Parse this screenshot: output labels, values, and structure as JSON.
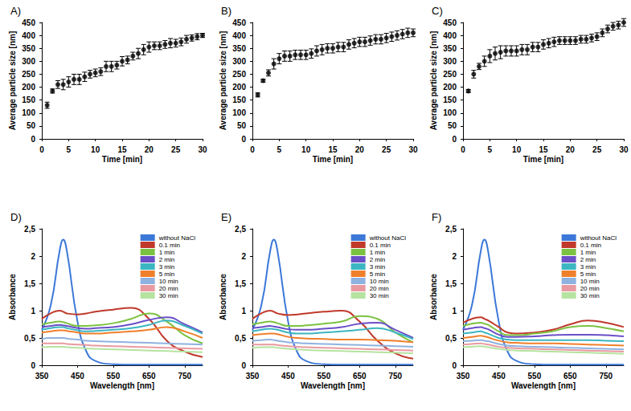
{
  "chart_data": [
    {
      "type": "scatter",
      "title": "A)",
      "x_label": "Time [min]",
      "y_label": "Average particle size [nm]",
      "x": [
        1,
        2,
        3,
        4,
        5,
        6,
        7,
        8,
        9,
        10,
        11,
        12,
        13,
        14,
        15,
        16,
        17,
        18,
        19,
        20,
        21,
        22,
        23,
        24,
        25,
        26,
        27,
        28,
        29,
        30
      ],
      "values": [
        130,
        185,
        210,
        210,
        220,
        230,
        230,
        240,
        250,
        255,
        260,
        280,
        280,
        285,
        300,
        305,
        320,
        330,
        345,
        355,
        360,
        360,
        365,
        370,
        370,
        375,
        385,
        390,
        395,
        400
      ],
      "errors": [
        12,
        8,
        15,
        20,
        20,
        20,
        20,
        18,
        15,
        15,
        15,
        20,
        20,
        15,
        18,
        15,
        15,
        20,
        20,
        20,
        15,
        15,
        15,
        18,
        15,
        15,
        15,
        12,
        12,
        8
      ],
      "color": "#000000",
      "marker": "circle",
      "xlim": [
        0,
        30
      ],
      "xticks": [
        0,
        5,
        10,
        15,
        20,
        25,
        30
      ],
      "ylim": [
        0,
        450
      ],
      "yticks": [
        0,
        50,
        100,
        150,
        200,
        250,
        300,
        350,
        400,
        450
      ],
      "grid": false
    },
    {
      "type": "scatter",
      "title": "B)",
      "x_label": "Time [min]",
      "y_label": "Average particle size [nm]",
      "x": [
        1,
        2,
        3,
        4,
        5,
        6,
        7,
        8,
        9,
        10,
        11,
        12,
        13,
        14,
        15,
        16,
        17,
        18,
        19,
        20,
        21,
        22,
        23,
        24,
        25,
        26,
        27,
        28,
        29,
        30
      ],
      "values": [
        170,
        225,
        255,
        290,
        310,
        320,
        320,
        325,
        325,
        325,
        330,
        340,
        345,
        350,
        350,
        355,
        355,
        365,
        370,
        375,
        375,
        380,
        385,
        385,
        390,
        395,
        400,
        405,
        410,
        410
      ],
      "errors": [
        8,
        6,
        12,
        20,
        20,
        20,
        20,
        18,
        18,
        18,
        18,
        20,
        20,
        18,
        18,
        18,
        18,
        18,
        18,
        18,
        18,
        18,
        18,
        18,
        18,
        18,
        18,
        18,
        18,
        15
      ],
      "color": "#000000",
      "marker": "circle",
      "xlim": [
        0,
        30
      ],
      "xticks": [
        0,
        5,
        10,
        15,
        20,
        25,
        30
      ],
      "ylim": [
        0,
        450
      ],
      "yticks": [
        0,
        50,
        100,
        150,
        200,
        250,
        300,
        350,
        400,
        450
      ],
      "grid": false
    },
    {
      "type": "scatter",
      "title": "C)",
      "x_label": "Time [min]",
      "y_label": "Average particle size [nm]",
      "x": [
        1,
        2,
        3,
        4,
        5,
        6,
        7,
        8,
        9,
        10,
        11,
        12,
        13,
        14,
        15,
        16,
        17,
        18,
        19,
        20,
        21,
        22,
        23,
        24,
        25,
        26,
        27,
        28,
        29,
        30
      ],
      "values": [
        185,
        250,
        280,
        300,
        320,
        330,
        335,
        340,
        340,
        340,
        345,
        345,
        355,
        355,
        365,
        370,
        375,
        380,
        380,
        380,
        380,
        385,
        385,
        390,
        395,
        410,
        425,
        435,
        440,
        450
      ],
      "errors": [
        6,
        15,
        12,
        20,
        25,
        25,
        25,
        20,
        20,
        20,
        20,
        20,
        18,
        18,
        18,
        18,
        18,
        15,
        15,
        15,
        15,
        15,
        15,
        15,
        15,
        15,
        15,
        15,
        15,
        15
      ],
      "color": "#000000",
      "marker": "circle",
      "xlim": [
        0,
        30
      ],
      "xticks": [
        0,
        5,
        10,
        15,
        20,
        25,
        30
      ],
      "ylim": [
        0,
        450
      ],
      "yticks": [
        0,
        50,
        100,
        150,
        200,
        250,
        300,
        350,
        400,
        450
      ],
      "grid": false
    },
    {
      "type": "line",
      "title": "D)",
      "x_label": "Wavelength [nm]",
      "y_label": "Absorbance",
      "x": [
        350,
        375,
        400,
        410,
        420,
        450,
        475,
        500,
        550,
        600,
        650,
        700,
        750,
        800
      ],
      "series": [
        {
          "name": "without NaCl",
          "color": "#3c78d8",
          "values": [
            0.65,
            1.1,
            2.1,
            2.3,
            2.1,
            0.8,
            0.25,
            0.08,
            0.02,
            0.01,
            0.01,
            0.01,
            0.01,
            0.01
          ]
        },
        {
          "name": "0.1 min",
          "color": "#c0392b",
          "values": [
            0.85,
            0.95,
            1.0,
            0.98,
            0.95,
            0.93,
            0.95,
            0.98,
            1.02,
            1.05,
            0.85,
            0.45,
            0.25,
            0.15
          ]
        },
        {
          "name": "1 min",
          "color": "#7cc242",
          "values": [
            0.75,
            0.78,
            0.8,
            0.79,
            0.77,
            0.72,
            0.72,
            0.73,
            0.77,
            0.85,
            0.95,
            0.8,
            0.55,
            0.4
          ]
        },
        {
          "name": "2 min",
          "color": "#6a4fc8",
          "values": [
            0.7,
            0.72,
            0.74,
            0.73,
            0.72,
            0.68,
            0.67,
            0.68,
            0.7,
            0.75,
            0.83,
            0.88,
            0.75,
            0.6
          ]
        },
        {
          "name": "3 min",
          "color": "#3cb6c0",
          "values": [
            0.65,
            0.68,
            0.7,
            0.7,
            0.68,
            0.64,
            0.62,
            0.63,
            0.65,
            0.68,
            0.74,
            0.82,
            0.72,
            0.58
          ]
        },
        {
          "name": "5 min",
          "color": "#f07f2b",
          "values": [
            0.6,
            0.62,
            0.64,
            0.64,
            0.63,
            0.6,
            0.58,
            0.58,
            0.6,
            0.62,
            0.65,
            0.7,
            0.62,
            0.5
          ]
        },
        {
          "name": "10 min",
          "color": "#8fb2e0",
          "values": [
            0.48,
            0.5,
            0.5,
            0.5,
            0.49,
            0.47,
            0.45,
            0.44,
            0.43,
            0.42,
            0.41,
            0.4,
            0.39,
            0.38
          ]
        },
        {
          "name": "20 min",
          "color": "#e89aa0",
          "values": [
            0.4,
            0.4,
            0.4,
            0.4,
            0.39,
            0.38,
            0.37,
            0.36,
            0.35,
            0.34,
            0.33,
            0.32,
            0.31,
            0.3
          ]
        },
        {
          "name": "30 min",
          "color": "#b6e3a0",
          "values": [
            0.33,
            0.34,
            0.34,
            0.34,
            0.33,
            0.32,
            0.31,
            0.3,
            0.29,
            0.28,
            0.27,
            0.26,
            0.25,
            0.24
          ]
        }
      ],
      "xlim": [
        350,
        800
      ],
      "xticks": [
        350,
        450,
        550,
        650,
        750
      ],
      "ylim": [
        0,
        2.5
      ],
      "yticks": [
        0,
        {
          "value": 0.5,
          "label": "0,5"
        },
        1,
        {
          "value": 1.5,
          "label": "1,5"
        },
        2,
        {
          "value": 2.5,
          "label": "2,5"
        }
      ],
      "grid": false,
      "legend": "upper right"
    },
    {
      "type": "line",
      "title": "E)",
      "x_label": "Wavelength [nm]",
      "y_label": "Absorbance",
      "x": [
        350,
        375,
        400,
        410,
        420,
        450,
        475,
        500,
        550,
        600,
        650,
        700,
        750,
        800
      ],
      "series": [
        {
          "name": "without NaCl",
          "color": "#3c78d8",
          "values": [
            0.65,
            1.1,
            2.1,
            2.3,
            2.1,
            0.8,
            0.25,
            0.08,
            0.02,
            0.01,
            0.01,
            0.01,
            0.01,
            0.01
          ]
        },
        {
          "name": "0.1 min",
          "color": "#c0392b",
          "values": [
            0.85,
            0.95,
            1.0,
            0.98,
            0.95,
            0.92,
            0.93,
            0.95,
            0.98,
            1.0,
            0.8,
            0.45,
            0.22,
            0.12
          ]
        },
        {
          "name": "1 min",
          "color": "#7cc242",
          "values": [
            0.75,
            0.78,
            0.8,
            0.79,
            0.77,
            0.72,
            0.72,
            0.73,
            0.76,
            0.8,
            0.9,
            0.85,
            0.6,
            0.42
          ]
        },
        {
          "name": "2 min",
          "color": "#6a4fc8",
          "values": [
            0.68,
            0.7,
            0.72,
            0.71,
            0.7,
            0.66,
            0.65,
            0.65,
            0.67,
            0.7,
            0.76,
            0.78,
            0.65,
            0.5
          ]
        },
        {
          "name": "3 min",
          "color": "#3cb6c0",
          "values": [
            0.62,
            0.65,
            0.67,
            0.66,
            0.65,
            0.6,
            0.58,
            0.58,
            0.6,
            0.62,
            0.65,
            0.68,
            0.6,
            0.48
          ]
        },
        {
          "name": "5 min",
          "color": "#f07f2b",
          "values": [
            0.55,
            0.57,
            0.58,
            0.58,
            0.57,
            0.52,
            0.5,
            0.49,
            0.48,
            0.47,
            0.47,
            0.46,
            0.45,
            0.42
          ]
        },
        {
          "name": "10 min",
          "color": "#8fb2e0",
          "values": [
            0.45,
            0.46,
            0.47,
            0.46,
            0.45,
            0.42,
            0.41,
            0.4,
            0.39,
            0.38,
            0.37,
            0.36,
            0.35,
            0.34
          ]
        },
        {
          "name": "20 min",
          "color": "#e89aa0",
          "values": [
            0.38,
            0.38,
            0.38,
            0.38,
            0.37,
            0.35,
            0.34,
            0.33,
            0.32,
            0.31,
            0.3,
            0.29,
            0.28,
            0.27
          ]
        },
        {
          "name": "30 min",
          "color": "#b6e3a0",
          "values": [
            0.32,
            0.33,
            0.33,
            0.33,
            0.32,
            0.3,
            0.29,
            0.28,
            0.27,
            0.26,
            0.25,
            0.24,
            0.23,
            0.22
          ]
        }
      ],
      "xlim": [
        350,
        800
      ],
      "xticks": [
        350,
        450,
        550,
        650,
        750
      ],
      "ylim": [
        0,
        2.5
      ],
      "yticks": [
        0,
        {
          "value": 0.5,
          "label": "0,5"
        },
        1,
        {
          "value": 1.5,
          "label": "1,5"
        },
        2,
        {
          "value": 2.5,
          "label": "2,5"
        }
      ],
      "grid": false,
      "legend": "upper right"
    },
    {
      "type": "line",
      "title": "F)",
      "x_label": "Wavelength [nm]",
      "y_label": "Absorbance",
      "x": [
        350,
        375,
        400,
        410,
        420,
        450,
        475,
        500,
        550,
        600,
        650,
        700,
        750,
        800
      ],
      "series": [
        {
          "name": "without NaCl",
          "color": "#3c78d8",
          "values": [
            0.65,
            1.1,
            2.1,
            2.3,
            2.1,
            0.8,
            0.25,
            0.08,
            0.02,
            0.01,
            0.01,
            0.01,
            0.01,
            0.01
          ]
        },
        {
          "name": "0.1 min",
          "color": "#c0392b",
          "values": [
            0.78,
            0.85,
            0.88,
            0.85,
            0.82,
            0.7,
            0.6,
            0.58,
            0.6,
            0.65,
            0.75,
            0.82,
            0.78,
            0.7
          ]
        },
        {
          "name": "1 min",
          "color": "#7cc242",
          "values": [
            0.72,
            0.76,
            0.78,
            0.76,
            0.74,
            0.62,
            0.55,
            0.55,
            0.58,
            0.62,
            0.7,
            0.72,
            0.68,
            0.62
          ]
        },
        {
          "name": "2 min",
          "color": "#6a4fc8",
          "values": [
            0.65,
            0.68,
            0.7,
            0.68,
            0.66,
            0.56,
            0.52,
            0.52,
            0.53,
            0.55,
            0.56,
            0.56,
            0.55,
            0.53
          ]
        },
        {
          "name": "3 min",
          "color": "#3cb6c0",
          "values": [
            0.58,
            0.6,
            0.62,
            0.6,
            0.58,
            0.5,
            0.47,
            0.46,
            0.46,
            0.46,
            0.46,
            0.46,
            0.45,
            0.44
          ]
        },
        {
          "name": "5 min",
          "color": "#f07f2b",
          "values": [
            0.5,
            0.52,
            0.54,
            0.53,
            0.51,
            0.45,
            0.42,
            0.41,
            0.4,
            0.4,
            0.39,
            0.38,
            0.37,
            0.36
          ]
        },
        {
          "name": "10 min",
          "color": "#8fb2e0",
          "values": [
            0.44,
            0.45,
            0.46,
            0.45,
            0.44,
            0.39,
            0.36,
            0.35,
            0.34,
            0.33,
            0.32,
            0.31,
            0.3,
            0.29
          ]
        },
        {
          "name": "20 min",
          "color": "#e89aa0",
          "values": [
            0.38,
            0.39,
            0.4,
            0.39,
            0.38,
            0.34,
            0.32,
            0.31,
            0.3,
            0.29,
            0.28,
            0.27,
            0.26,
            0.25
          ]
        },
        {
          "name": "30 min",
          "color": "#b6e3a0",
          "values": [
            0.33,
            0.34,
            0.35,
            0.34,
            0.33,
            0.3,
            0.28,
            0.27,
            0.26,
            0.25,
            0.24,
            0.23,
            0.22,
            0.21
          ]
        }
      ],
      "xlim": [
        350,
        800
      ],
      "xticks": [
        350,
        450,
        550,
        650,
        750
      ],
      "ylim": [
        0,
        2.5
      ],
      "yticks": [
        0,
        {
          "value": 0.5,
          "label": "0,5"
        },
        1,
        {
          "value": 1.5,
          "label": "1,5"
        },
        2,
        {
          "value": 2.5,
          "label": "2,5"
        }
      ],
      "grid": false,
      "legend": "upper right"
    }
  ]
}
